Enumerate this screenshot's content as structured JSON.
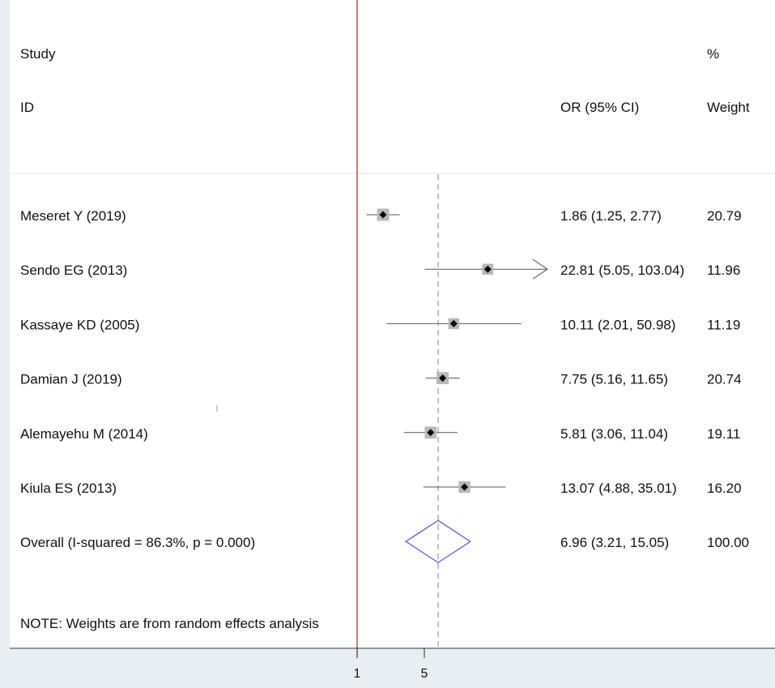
{
  "chart_data": {
    "type": "forest",
    "header": {
      "study_line1": "Study",
      "study_line2": "ID",
      "effect_label": "OR (95% CI)",
      "weight_line1": "%",
      "weight_line2": "Weight"
    },
    "studies": [
      {
        "id": "Meseret Y (2019)",
        "or": 1.86,
        "lower": 1.25,
        "upper": 2.77,
        "text": "1.86 (1.25, 2.77)",
        "weight": "20.79"
      },
      {
        "id": "Sendo EG (2013)",
        "or": 22.81,
        "lower": 5.05,
        "upper": 103.04,
        "text": "22.81 (5.05, 103.04)",
        "weight": "11.96"
      },
      {
        "id": "Kassaye  KD (2005)",
        "or": 10.11,
        "lower": 2.01,
        "upper": 50.98,
        "text": "10.11 (2.01, 50.98)",
        "weight": "11.19"
      },
      {
        "id": "Damian J (2019)",
        "or": 7.75,
        "lower": 5.16,
        "upper": 11.65,
        "text": "7.75 (5.16, 11.65)",
        "weight": "20.74"
      },
      {
        "id": "Alemayehu M (2014)",
        "or": 5.81,
        "lower": 3.06,
        "upper": 11.04,
        "text": "5.81 (3.06, 11.04)",
        "weight": "19.11"
      },
      {
        "id": "Kiula  ES (2013)",
        "or": 13.07,
        "lower": 4.88,
        "upper": 35.01,
        "text": "13.07 (4.88, 35.01)",
        "weight": "16.20"
      }
    ],
    "overall": {
      "label": "Overall  (I-squared = 86.3%, p = 0.000)",
      "or": 6.96,
      "lower": 3.21,
      "upper": 15.05,
      "text": "6.96 (3.21, 15.05)",
      "weight": "100.00"
    },
    "note": "NOTE: Weights are from random effects analysis",
    "x_ticks": [
      {
        "value": 1,
        "label": "1"
      },
      {
        "value": 5,
        "label": "5"
      }
    ],
    "x_range": [
      0.5,
      50
    ],
    "x_scale": "log",
    "reference_line": 1,
    "colors": {
      "reference_line": "#b22222",
      "overall_diamond": "#4b55d6",
      "weight_box": "#b8b8b8",
      "overall_dashed_line": "#a0a0a0"
    }
  }
}
